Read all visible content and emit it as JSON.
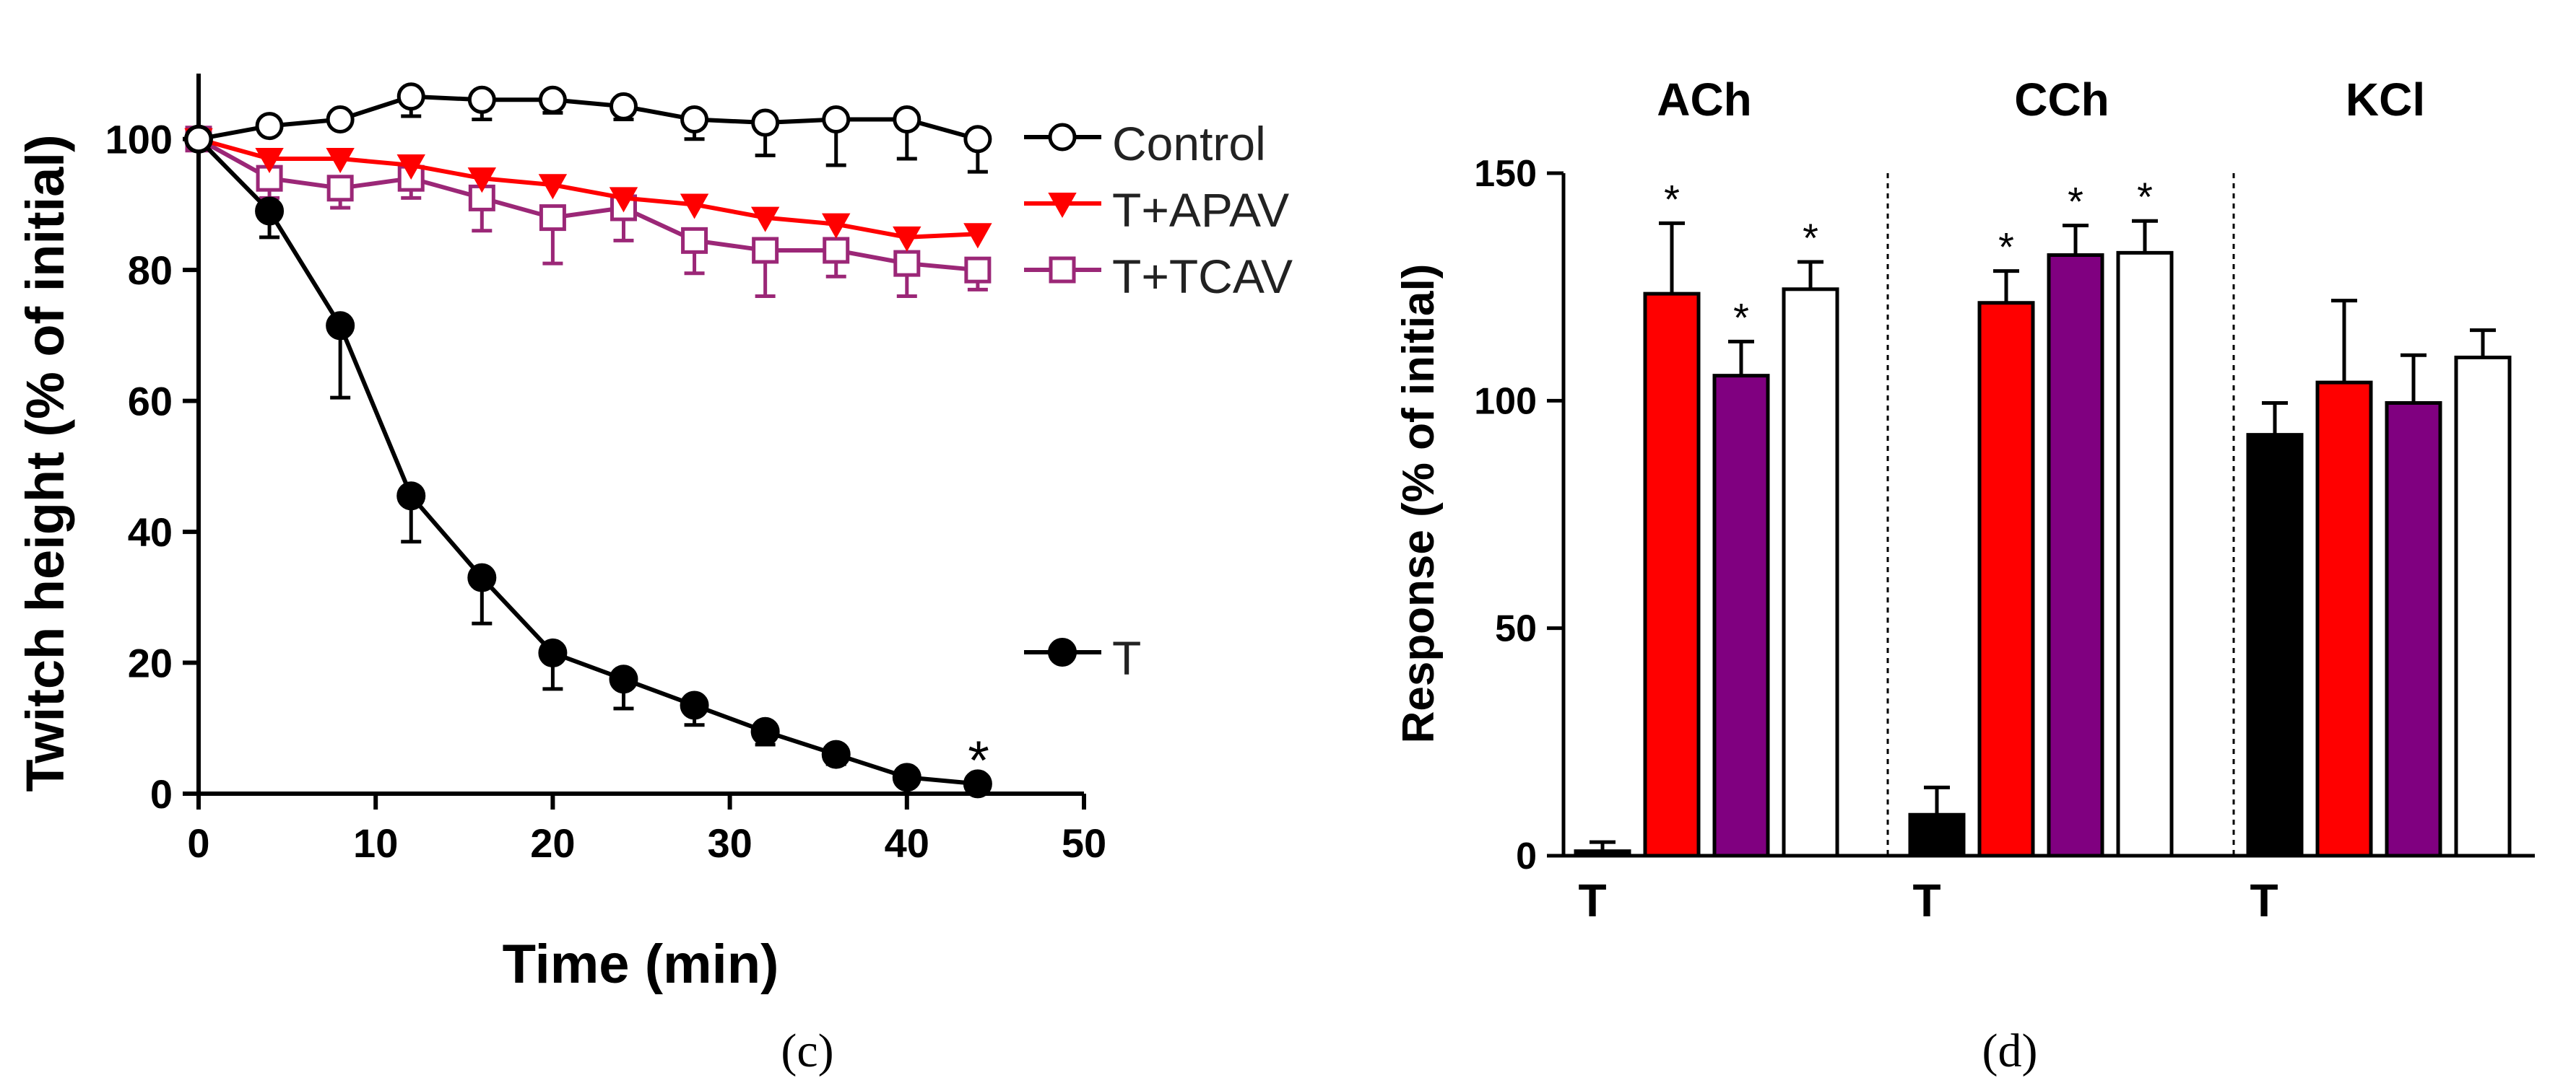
{
  "colors": {
    "control": "#000000",
    "t": "#000000",
    "apav": "#ff0000",
    "tcav": "#9b2777",
    "bar_t": "#000000",
    "bar_red": "#ff0000",
    "bar_purple": "#800080",
    "bar_white": "#ffffff"
  },
  "chart_data": [
    {
      "type": "line",
      "panel_label": "(c)",
      "xlabel": "Time (min)",
      "ylabel": "Twitch height (% of initial)",
      "xlim": [
        0,
        50
      ],
      "ylim": [
        0,
        110
      ],
      "x_ticks": [
        "0",
        "10",
        "20",
        "30",
        "40",
        "50"
      ],
      "y_ticks": [
        "0",
        "20",
        "40",
        "60",
        "80",
        "100"
      ],
      "x": [
        0,
        4,
        8,
        12,
        16,
        20,
        24,
        28,
        32,
        36,
        40,
        44
      ],
      "series": [
        {
          "name": "Control",
          "marker": "open-circle",
          "values": [
            100,
            102,
            103,
            106.5,
            106,
            106,
            105,
            103,
            102.5,
            103,
            103,
            100
          ],
          "errors": [
            0,
            0,
            0,
            3,
            3,
            2,
            2,
            3,
            5,
            7,
            6,
            5
          ]
        },
        {
          "name": "T+APAV",
          "marker": "filled-triangle-down",
          "values": [
            100,
            97,
            97,
            96,
            94,
            93,
            91,
            90,
            88,
            87,
            85,
            85.5
          ],
          "errors": [
            0,
            0,
            0,
            0,
            0,
            0,
            0,
            0,
            0,
            0,
            0,
            0
          ]
        },
        {
          "name": "T+TCAV",
          "marker": "open-square",
          "values": [
            100,
            94,
            92.5,
            94,
            91,
            88,
            89.5,
            84.5,
            83,
            83,
            81,
            80
          ],
          "errors": [
            0,
            3,
            3,
            3,
            5,
            7,
            5,
            5,
            7,
            4,
            5,
            3
          ]
        },
        {
          "name": "T",
          "marker": "filled-circle",
          "values": [
            100,
            89,
            71.5,
            45.5,
            33,
            21.5,
            17.5,
            13.5,
            9.5,
            6,
            2.5,
            1.5
          ],
          "errors": [
            0,
            4,
            11,
            7,
            7,
            5.5,
            4.5,
            3,
            2,
            1.5,
            1,
            0.5
          ]
        }
      ],
      "annotations": [
        {
          "text": "*",
          "x": 44
        }
      ]
    },
    {
      "type": "bar",
      "panel_label": "(d)",
      "ylabel": "Response (% of initial)",
      "ylim": [
        0,
        150
      ],
      "y_ticks": [
        "0",
        "50",
        "100",
        "150"
      ],
      "groups": [
        {
          "name": "ACh",
          "t_label": "T",
          "values": [
            1,
            123.5,
            105.5,
            124.5
          ],
          "errors": [
            2,
            15.5,
            7.5,
            6
          ],
          "stars": [
            "",
            "*",
            "*",
            "*"
          ]
        },
        {
          "name": "CCh",
          "t_label": "T",
          "values": [
            9,
            121.5,
            132,
            132.5
          ],
          "errors": [
            6,
            7,
            6.5,
            7
          ],
          "stars": [
            "",
            "*",
            "*",
            "*"
          ]
        },
        {
          "name": "KCl",
          "t_label": "T",
          "values": [
            92.5,
            104,
            99.5,
            109.5
          ],
          "errors": [
            7,
            18,
            10.5,
            6
          ],
          "stars": [
            "",
            "",
            "",
            ""
          ]
        }
      ],
      "bar_fills": [
        "bar_t",
        "bar_red",
        "bar_purple",
        "bar_white"
      ]
    }
  ]
}
